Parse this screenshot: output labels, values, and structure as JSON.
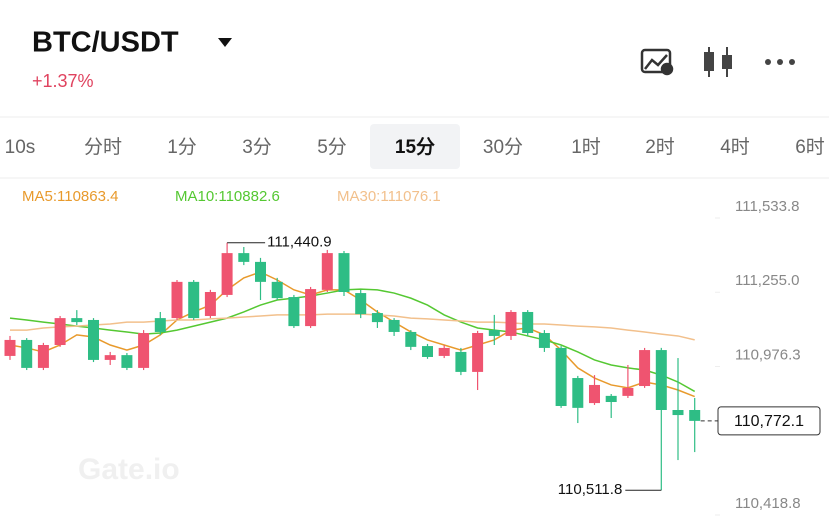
{
  "header": {
    "pair": "BTC/USDT",
    "change": "+1.37%"
  },
  "tabs": [
    "10s",
    "分时",
    "1分",
    "3分",
    "5分",
    "15分",
    "30分",
    "1时",
    "2时",
    "4时",
    "6时"
  ],
  "active_tab": 5,
  "chart_data": {
    "type": "candlestick",
    "color_up": "#ef5470",
    "color_down": "#2ebd85",
    "open": [
      111016,
      111076,
      110971,
      111057,
      111158,
      111151,
      111001,
      111019,
      110971,
      111158,
      111158,
      111294,
      111166,
      111245,
      111402,
      111369,
      111294,
      111237,
      111128,
      111264,
      111402,
      111252,
      111177,
      111151,
      111106,
      111053,
      111016,
      111031,
      110956,
      111113,
      111091,
      111181,
      111102,
      111046,
      110933,
      110839,
      110866,
      110866,
      110903,
      111038,
      110813,
      110813
    ],
    "high": [
      111091,
      111083,
      111065,
      111166,
      111188,
      111158,
      111031,
      111027,
      111113,
      111181,
      111301,
      111301,
      111264,
      111440.9,
      111425,
      111384,
      111309,
      111245,
      111275,
      111414,
      111410,
      111264,
      111188,
      111158,
      111113,
      111061,
      111057,
      111046,
      111110,
      111170,
      111188,
      111188,
      111113,
      111053,
      110941,
      110944,
      110873,
      110982,
      111046,
      111046,
      111008,
      110858
    ],
    "low": [
      111001,
      110963,
      110963,
      111050,
      111132,
      110993,
      110982,
      110963,
      110963,
      111095,
      111151,
      111151,
      111158,
      111237,
      111357,
      111226,
      111226,
      111121,
      111121,
      111256,
      111241,
      111158,
      111121,
      111091,
      111038,
      111005,
      111008,
      110944,
      110888,
      111057,
      111076,
      111091,
      111031,
      110821,
      110764,
      110832,
      110783,
      110858,
      110896,
      110511.8,
      110625,
      110655
    ],
    "close": [
      111076,
      110971,
      111057,
      111158,
      111143,
      111001,
      111019,
      110971,
      111102,
      111106,
      111294,
      111158,
      111256,
      111402,
      111369,
      111294,
      111233,
      111128,
      111267,
      111402,
      111256,
      111173,
      111143,
      111106,
      111050,
      111012,
      111046,
      110956,
      111102,
      111091,
      111181,
      111102,
      111046,
      110828,
      110821,
      110907,
      110843,
      110896,
      111038,
      110813,
      110794,
      110772.1
    ],
    "series": [
      {
        "name": "MA5:110863.4",
        "color": "#e89a2c",
        "values": [
          111057,
          111046,
          111031,
          111057,
          111095,
          111087,
          111057,
          111038,
          111057,
          111095,
          111151,
          111181,
          111207,
          111264,
          111309,
          111331,
          111301,
          111264,
          111245,
          111264,
          111264,
          111226,
          111181,
          111143,
          111106,
          111076,
          111057,
          111038,
          111057,
          111076,
          111113,
          111121,
          111095,
          111038,
          110971,
          110933,
          110907,
          110896,
          110918,
          110907,
          110888,
          110863.4
        ]
      },
      {
        "name": "MA10:110882.6",
        "color": "#55c832",
        "values": [
          111158,
          111151,
          111143,
          111136,
          111128,
          111121,
          111113,
          111106,
          111098,
          111102,
          111113,
          111128,
          111143,
          111158,
          111181,
          111207,
          111226,
          111233,
          111241,
          111252,
          111264,
          111267,
          111264,
          111252,
          111233,
          111207,
          111170,
          111143,
          111121,
          111113,
          111106,
          111091,
          111076,
          111057,
          111031,
          111001,
          110982,
          110971,
          110963,
          110944,
          110918,
          110882.6
        ]
      },
      {
        "name": "MA30:111076.1",
        "color": "#f2c08c",
        "values": [
          111113,
          111113,
          111121,
          111125,
          111128,
          111132,
          111136,
          111143,
          111143,
          111147,
          111151,
          111151,
          111155,
          111158,
          111162,
          111166,
          111170,
          111170,
          111170,
          111173,
          111173,
          111173,
          111170,
          111166,
          111158,
          111155,
          111151,
          111147,
          111143,
          111143,
          111140,
          111136,
          111136,
          111132,
          111128,
          111125,
          111121,
          111113,
          111106,
          111098,
          111091,
          111076.1
        ]
      }
    ],
    "ylim": [
      110418.8,
      111533.8
    ],
    "yticks": [
      {
        "value": 111533.8,
        "label": "111,533.8"
      },
      {
        "value": 111255.0,
        "label": "111,255.0"
      },
      {
        "value": 110976.3,
        "label": "110,976.3"
      },
      {
        "value": 110418.8,
        "label": "110,418.8"
      }
    ],
    "grid": false,
    "high_label": "111,440.9",
    "low_label": "110,511.8",
    "last_price": {
      "value": 110772.1,
      "label": "110,772.1"
    },
    "watermark": "Gate.io"
  }
}
